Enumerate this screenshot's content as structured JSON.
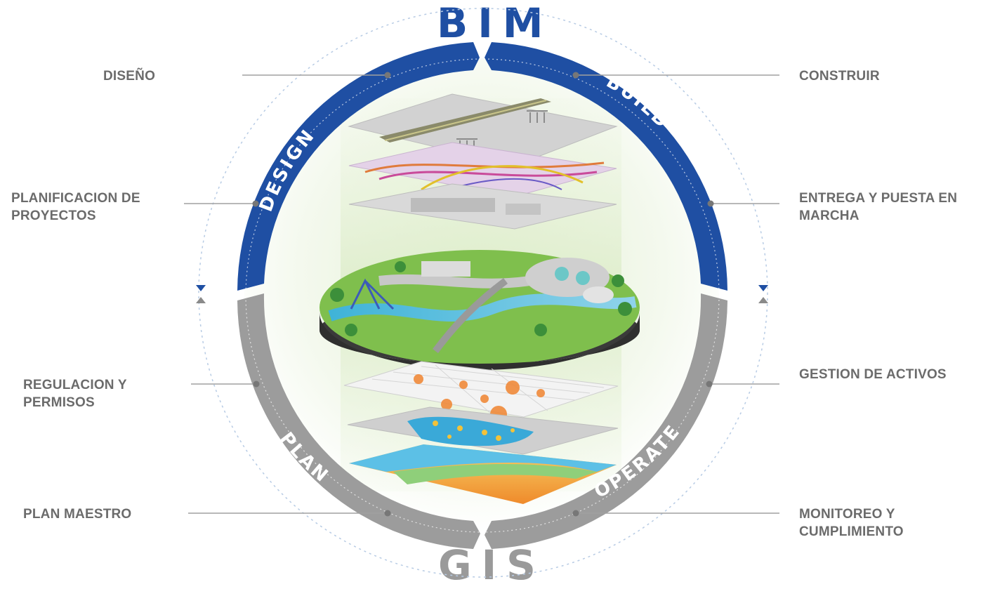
{
  "titles": {
    "top": "BIM",
    "bottom": "GIS"
  },
  "phases": {
    "design": "DESIGN",
    "build": "BUILD",
    "plan": "PLAN",
    "operate": "OPERATE"
  },
  "labels": {
    "left": [
      "DISEÑO",
      "PLANIFICACION DE PROYECTOS",
      "REGULACION Y PERMISOS",
      "PLAN MAESTRO"
    ],
    "right": [
      "CONSTRUIR",
      "ENTREGA Y PUESTA EN MARCHA",
      "GESTION DE ACTIVOS",
      "MONITOREO Y CUMPLIMIENTO"
    ]
  },
  "colors": {
    "bim_blue": "#1f4fa3",
    "gis_gray": "#9a9a9a",
    "label_gray": "#6b6b6b",
    "leader_gray": "#a0a0a0"
  }
}
